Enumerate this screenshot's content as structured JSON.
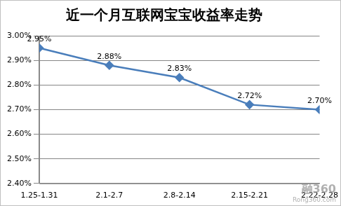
{
  "chart_data": {
    "type": "line",
    "title": "近一个月互联网宝宝收益率走势",
    "categories": [
      "1.25-1.31",
      "2.1-2.7",
      "2.8-2.14",
      "2.15-2.21",
      "2.22-2.28"
    ],
    "values": [
      2.95,
      2.88,
      2.83,
      2.72,
      2.7
    ],
    "value_labels": [
      "2.95%",
      "2.88%",
      "2.83%",
      "2.72%",
      "2.70%"
    ],
    "color": "#4a7ebb",
    "marker": "diamond",
    "data_labels": true,
    "ylim": [
      2.4,
      3.0
    ],
    "yticks": [
      {
        "value": 2.4,
        "label": "2.40%"
      },
      {
        "value": 2.5,
        "label": "2.50%"
      },
      {
        "value": 2.6,
        "label": "2.60%"
      },
      {
        "value": 2.7,
        "label": "2.70%"
      },
      {
        "value": 2.8,
        "label": "2.80%"
      },
      {
        "value": 2.9,
        "label": "2.90%"
      },
      {
        "value": 3.0,
        "label": "3.00%"
      }
    ],
    "grid": true,
    "annotations": [
      "融360",
      "Rong360.com"
    ]
  }
}
